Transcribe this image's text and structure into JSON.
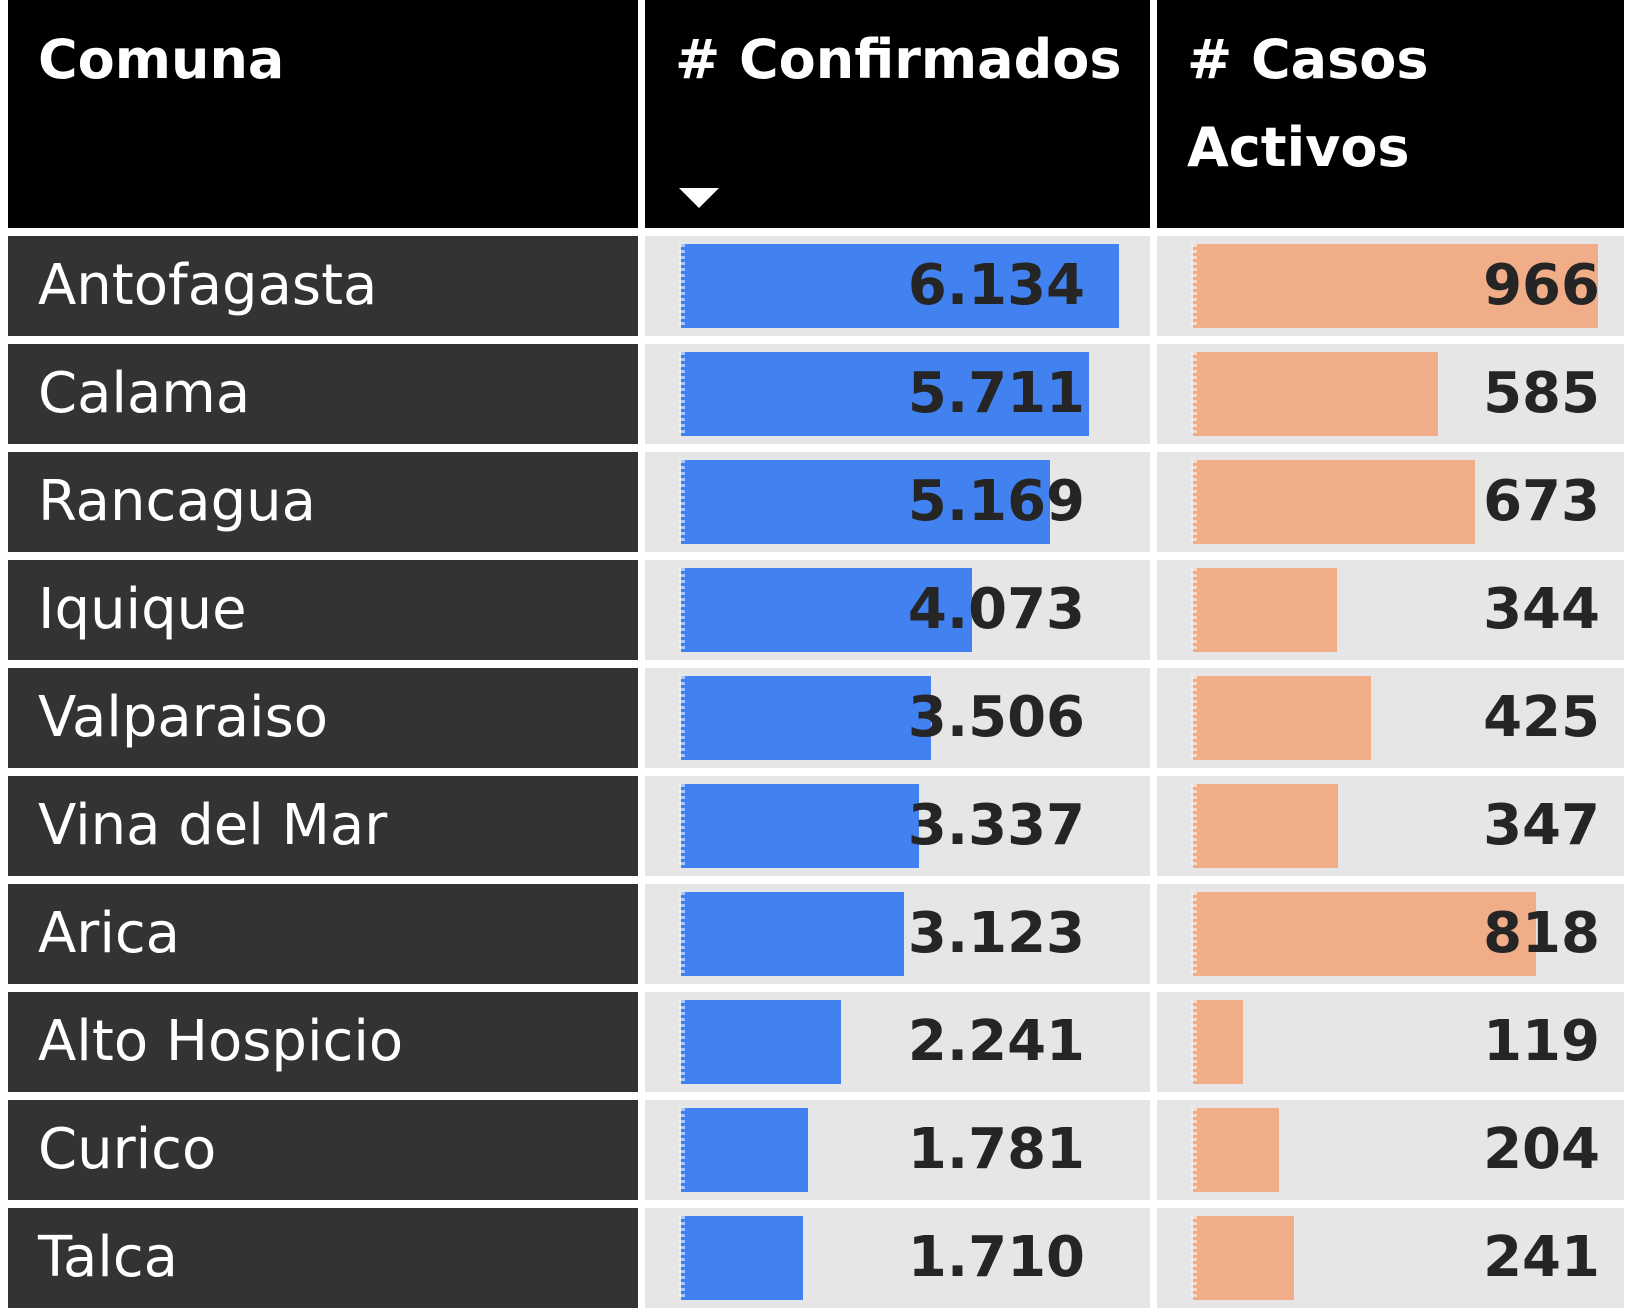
{
  "colors": {
    "header_bg": "#000000",
    "name_bg": "#333333",
    "value_bg": "#e6e6e6",
    "confirmed_bar": "#4282f0",
    "active_bar": "#f1ac88"
  },
  "chart_data": {
    "type": "table",
    "columns": [
      "Comuna",
      "# Confirmados",
      "# Casos Activos"
    ],
    "sort": {
      "column": "# Confirmados",
      "order": "descending",
      "icon": "sort-descending-icon"
    },
    "rows": [
      {
        "comuna": "Antofagasta",
        "confirmados": 6134,
        "confirmados_label": "6.134",
        "activos": 966,
        "activos_label": "966"
      },
      {
        "comuna": "Calama",
        "confirmados": 5711,
        "confirmados_label": "5.711",
        "activos": 585,
        "activos_label": "585"
      },
      {
        "comuna": "Rancagua",
        "confirmados": 5169,
        "confirmados_label": "5.169",
        "activos": 673,
        "activos_label": "673"
      },
      {
        "comuna": "Iquique",
        "confirmados": 4073,
        "confirmados_label": "4.073",
        "activos": 344,
        "activos_label": "344"
      },
      {
        "comuna": "Valparaiso",
        "confirmados": 3506,
        "confirmados_label": "3.506",
        "activos": 425,
        "activos_label": "425"
      },
      {
        "comuna": "Vina del Mar",
        "confirmados": 3337,
        "confirmados_label": "3.337",
        "activos": 347,
        "activos_label": "347"
      },
      {
        "comuna": "Arica",
        "confirmados": 3123,
        "confirmados_label": "3.123",
        "activos": 818,
        "activos_label": "818"
      },
      {
        "comuna": "Alto Hospicio",
        "confirmados": 2241,
        "confirmados_label": "2.241",
        "activos": 119,
        "activos_label": "119"
      },
      {
        "comuna": "Curico",
        "confirmados": 1781,
        "confirmados_label": "1.781",
        "activos": 204,
        "activos_label": "204"
      },
      {
        "comuna": "Talca",
        "confirmados": 1710,
        "confirmados_label": "1.710",
        "activos": 241,
        "activos_label": "241"
      }
    ]
  }
}
